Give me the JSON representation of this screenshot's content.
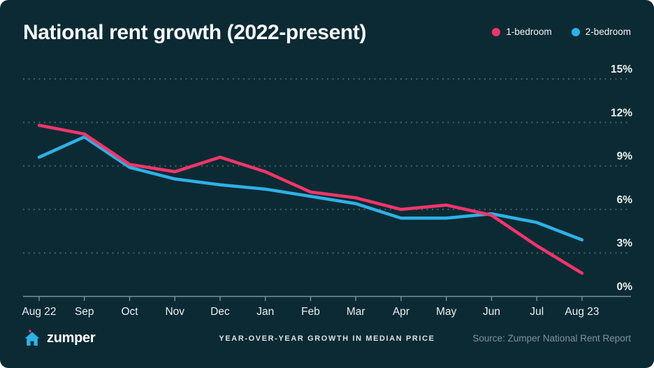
{
  "header": {
    "title": "National rent growth (2022-present)"
  },
  "chart_data": {
    "type": "line",
    "title": "National rent growth (2022-present)",
    "x": [
      "Aug 22",
      "Sep",
      "Oct",
      "Nov",
      "Dec",
      "Jan",
      "Feb",
      "Mar",
      "Apr",
      "May",
      "Jun",
      "Jul",
      "Aug 23"
    ],
    "series": [
      {
        "name": "1-bedroom",
        "color": "#F0366C",
        "values": [
          11.8,
          11.2,
          9.1,
          8.6,
          9.6,
          8.6,
          7.2,
          6.8,
          6.0,
          6.3,
          5.6,
          3.5,
          1.6
        ]
      },
      {
        "name": "2-bedroom",
        "color": "#2EB1E6",
        "values": [
          9.6,
          11.0,
          8.9,
          8.1,
          7.7,
          7.4,
          6.9,
          6.4,
          5.4,
          5.4,
          5.7,
          5.1,
          3.9
        ]
      }
    ],
    "ylabel": "",
    "xlabel": "",
    "ylim": [
      0,
      15
    ],
    "yticks": [
      0,
      3,
      6,
      9,
      12,
      15
    ],
    "ytick_suffix": "%",
    "grid": "dotted-horizontal",
    "legend_position": "top-right"
  },
  "footer": {
    "brand": "zumper",
    "caption": "YEAR-OVER-YEAR GROWTH IN MEDIAN PRICE",
    "source": "Source: Zumper National Rent Report"
  },
  "icons": {
    "logo": "zumper-house-heart-icon"
  },
  "colors": {
    "background": "#0C2A34",
    "one_bedroom": "#F0366C",
    "two_bedroom": "#2EB1E6",
    "axis": "#7C909A",
    "gridline": "#51ололнено6871",
    "text_primary": "#F2F6F8",
    "text_muted": "#7E939E"
  }
}
